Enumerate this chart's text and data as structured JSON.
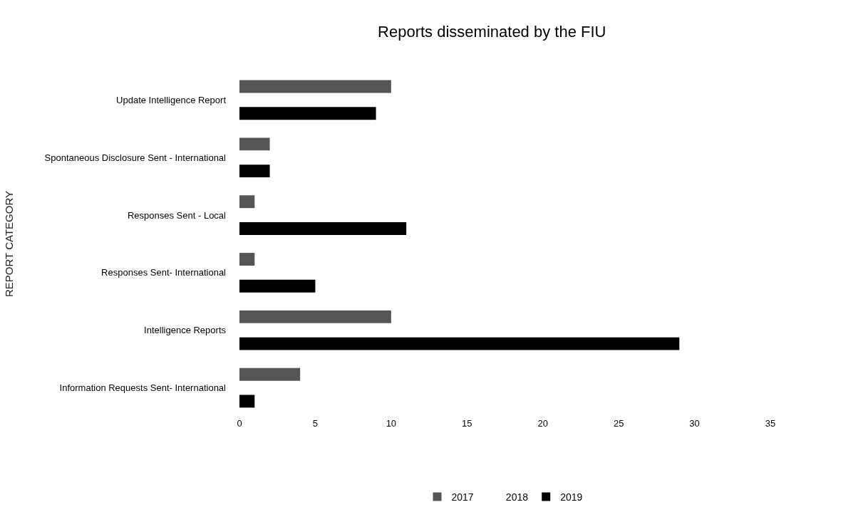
{
  "chart_data": {
    "type": "bar",
    "orientation": "horizontal",
    "title": "Reports disseminated by the FIU",
    "ylabel": "REPORT CATEGORY",
    "categories": [
      "Update Intelligence Report",
      "Spontaneous Disclosure Sent - International",
      "Responses Sent - Local",
      "Responses Sent- International",
      "Intelligence Reports",
      "Information Requests Sent- International"
    ],
    "series": [
      {
        "name": "2017",
        "color": "#555555",
        "values": [
          10,
          2,
          1,
          1,
          10,
          4
        ]
      },
      {
        "name": "2018",
        "values": [
          null,
          null,
          null,
          null,
          null,
          null
        ]
      },
      {
        "name": "2019",
        "color": "#000000",
        "values": [
          9,
          2,
          11,
          5,
          29,
          1
        ]
      }
    ],
    "xlim": [
      0,
      35
    ],
    "xticks": [
      0,
      5,
      10,
      15,
      20,
      25,
      30,
      35
    ],
    "grid": false,
    "legend": "bottom"
  }
}
